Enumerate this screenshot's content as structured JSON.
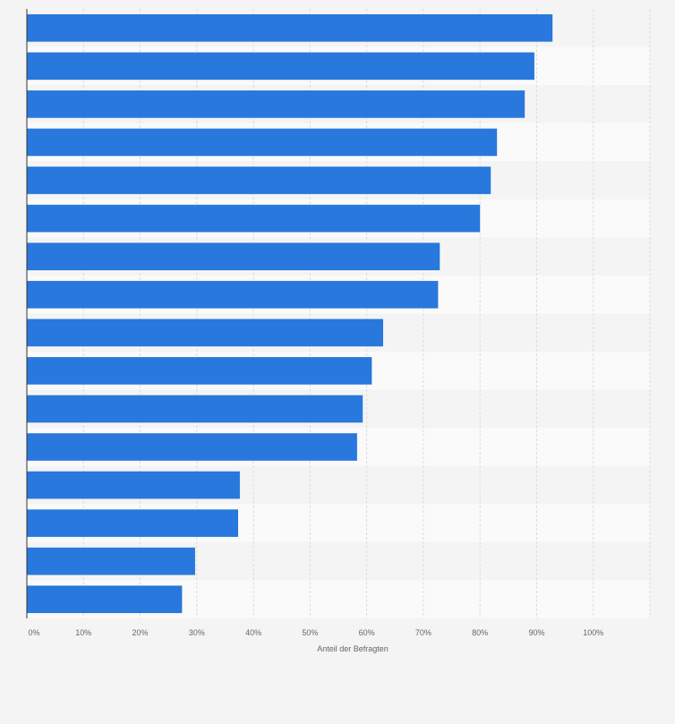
{
  "chart_data": {
    "type": "bar",
    "orientation": "horizontal",
    "categories": [
      "",
      "",
      "",
      "",
      "",
      "",
      "",
      "",
      "",
      "",
      "",
      "",
      "",
      "",
      "",
      ""
    ],
    "values": [
      92.8,
      89.6,
      87.9,
      83.0,
      81.9,
      80.0,
      72.9,
      72.6,
      62.9,
      60.9,
      59.3,
      58.3,
      37.6,
      37.3,
      29.7,
      27.4
    ],
    "xlabel": "Anteil der Befragten",
    "ylabel": "",
    "xlim": [
      0,
      110
    ],
    "x_ticks": [
      "0%",
      "10%",
      "20%",
      "30%",
      "40%",
      "50%",
      "60%",
      "70%",
      "80%",
      "90%",
      "100%"
    ],
    "grid": true,
    "legend": "none",
    "colors": {
      "bar": "#2878dd",
      "band_a": "#f4f4f4",
      "band_b": "#fafafa",
      "grid": "#dddddd",
      "axis": "#333333",
      "text": "#666666",
      "background": "#f4f4f4"
    }
  }
}
